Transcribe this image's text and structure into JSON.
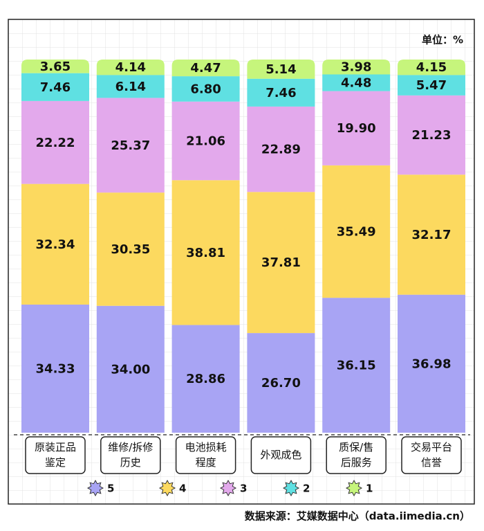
{
  "chart_data": {
    "type": "stacked-bar",
    "unit": "单位：%",
    "source": "数据来源：艾媒数据中心（data.iimedia.cn）",
    "categories": [
      [
        "原装正品",
        "鉴定"
      ],
      [
        "维修/拆修",
        "历史"
      ],
      [
        "电池损耗",
        "程度"
      ],
      [
        "外观成色"
      ],
      [
        "质保/售",
        "后服务"
      ],
      [
        "交易平台",
        "信誉"
      ]
    ],
    "ylim": [
      0,
      100
    ],
    "series": [
      {
        "name": "5",
        "color": "#a8a4f4",
        "values": [
          34.33,
          34.0,
          28.86,
          26.7,
          36.15,
          36.98
        ],
        "value_labels": [
          "34.33",
          "34.00",
          "28.86",
          "26.70",
          "36.15",
          "36.98"
        ]
      },
      {
        "name": "4",
        "color": "#fcd95f",
        "values": [
          32.34,
          30.35,
          38.81,
          37.81,
          35.49,
          32.17
        ],
        "value_labels": [
          "32.34",
          "30.35",
          "38.81",
          "37.81",
          "35.49",
          "32.17"
        ]
      },
      {
        "name": "3",
        "color": "#e3a9ec",
        "values": [
          22.22,
          25.37,
          21.06,
          22.89,
          19.9,
          21.23
        ],
        "value_labels": [
          "22.22",
          "25.37",
          "21.06",
          "22.89",
          "19.90",
          "21.23"
        ]
      },
      {
        "name": "2",
        "color": "#5fe0e2",
        "values": [
          7.46,
          6.14,
          6.8,
          7.46,
          4.48,
          5.47
        ],
        "value_labels": [
          "7.46",
          "6.14",
          "6.80",
          "7.46",
          "4.48",
          "5.47"
        ]
      },
      {
        "name": "1",
        "color": "#c6f57c",
        "values": [
          3.65,
          4.14,
          4.47,
          5.14,
          3.98,
          4.15
        ],
        "value_labels": [
          "3.65",
          "4.14",
          "4.47",
          "5.14",
          "3.98",
          "4.15"
        ]
      }
    ]
  }
}
